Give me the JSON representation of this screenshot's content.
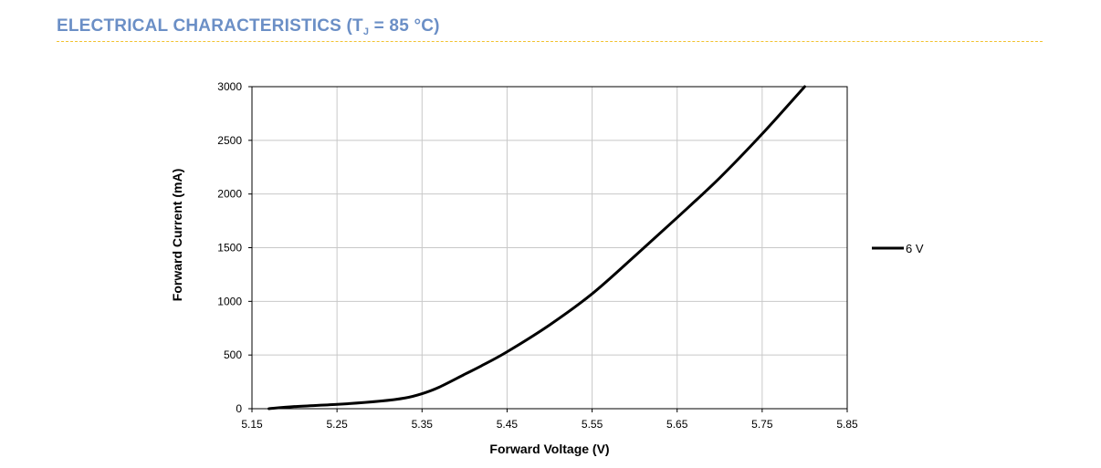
{
  "page": {
    "title_main": "ELECTRICAL CHARACTERISTICS (T",
    "title_sub": "J",
    "title_rest": " = 85 °C)",
    "title_color": "#6b8fc6",
    "rule_color": "#f2c230"
  },
  "chart_data": {
    "type": "line",
    "title": "",
    "xlabel": "Forward Voltage (V)",
    "ylabel": "Forward Current (mA)",
    "xlim": [
      5.15,
      5.85
    ],
    "ylim": [
      0,
      3000
    ],
    "x_ticks": [
      "5.15",
      "5.25",
      "5.35",
      "5.45",
      "5.55",
      "5.65",
      "5.75",
      "5.85"
    ],
    "y_ticks": [
      "0",
      "500",
      "1000",
      "1500",
      "2000",
      "2500",
      "3000"
    ],
    "grid": true,
    "legend_position": "right",
    "series": [
      {
        "name": "6 V",
        "color": "#000000",
        "x": [
          5.17,
          5.2,
          5.25,
          5.3,
          5.33,
          5.35,
          5.37,
          5.4,
          5.42,
          5.45,
          5.5,
          5.55,
          5.6,
          5.65,
          5.7,
          5.75,
          5.8
        ],
        "y": [
          0,
          20,
          40,
          70,
          100,
          140,
          200,
          320,
          400,
          530,
          780,
          1070,
          1420,
          1780,
          2150,
          2560,
          3000
        ]
      }
    ]
  }
}
